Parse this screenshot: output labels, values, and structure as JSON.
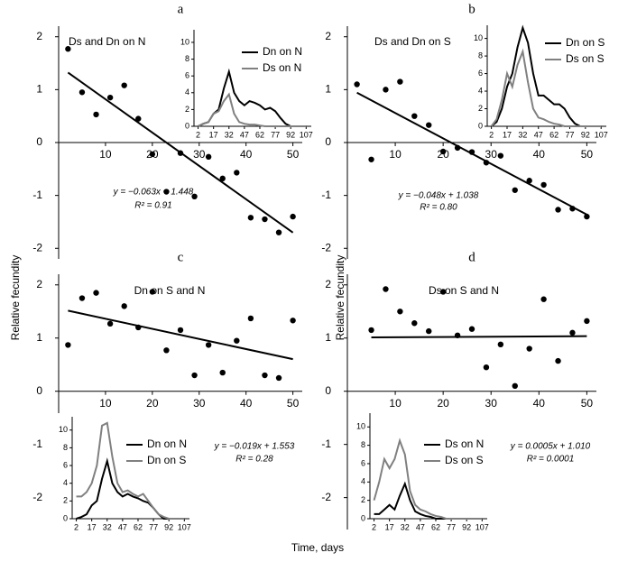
{
  "figure": {
    "ylabels": [
      "Relative fecundity",
      "Relative fecundity"
    ],
    "xlabel": "Time, days"
  },
  "chart_data": [
    {
      "type": "scatter",
      "title": "a",
      "subtitle": "Ds and Dn on N",
      "color": "#000000",
      "x": [
        2,
        5,
        8,
        11,
        14,
        17,
        20,
        23,
        26,
        29,
        32,
        35,
        38,
        41,
        44,
        47,
        50
      ],
      "values": [
        1.77,
        0.95,
        0.53,
        0.85,
        1.08,
        0.45,
        -0.22,
        -0.93,
        -0.2,
        -1.02,
        -0.27,
        -0.68,
        -0.57,
        -1.42,
        -1.45,
        -1.7,
        -1.4
      ],
      "fit": {
        "slope": -0.063,
        "intercept": 1.448
      },
      "equation": "y = −0.063x + 1.448",
      "r2": "R² = 0.91",
      "xlim": [
        0,
        52
      ],
      "ylim": [
        -2.2,
        2.2
      ],
      "xticks": [
        10,
        20,
        30,
        40,
        50
      ],
      "yticks": [
        -2,
        -1,
        0,
        1,
        2
      ]
    },
    {
      "type": "scatter",
      "title": "b",
      "subtitle": "Ds and Dn on S",
      "color": "#000000",
      "x": [
        2,
        5,
        8,
        11,
        14,
        17,
        20,
        23,
        26,
        29,
        32,
        35,
        38,
        41,
        44,
        47,
        50
      ],
      "values": [
        1.1,
        -0.32,
        1.0,
        1.15,
        0.5,
        0.33,
        -0.17,
        -0.1,
        -0.18,
        -0.38,
        -0.25,
        -0.9,
        -0.72,
        -0.8,
        -1.27,
        -1.25,
        -1.4
      ],
      "fit": {
        "slope": -0.048,
        "intercept": 1.038
      },
      "equation": "y = −0.048x + 1.038",
      "r2": "R² = 0.80",
      "xlim": [
        0,
        52
      ],
      "ylim": [
        -2.2,
        2.2
      ],
      "xticks": [
        10,
        20,
        30,
        40,
        50
      ],
      "yticks": [
        -2,
        -1,
        0,
        1,
        2
      ]
    },
    {
      "type": "scatter",
      "title": "c",
      "subtitle": "Dn on S and N",
      "color": "#000000",
      "x": [
        2,
        5,
        8,
        11,
        14,
        17,
        20,
        23,
        26,
        29,
        32,
        35,
        38,
        41,
        44,
        47,
        50
      ],
      "values": [
        0.87,
        1.75,
        1.85,
        1.27,
        1.6,
        1.2,
        1.87,
        0.77,
        1.15,
        0.3,
        0.87,
        0.35,
        0.95,
        1.37,
        0.3,
        0.25,
        1.33
      ],
      "fit": {
        "slope": -0.019,
        "intercept": 1.553
      },
      "equation": "y = −0.019x + 1.553",
      "r2": "R² = 0.28",
      "xlim": [
        0,
        52
      ],
      "ylim": [
        -2.6,
        2.2
      ],
      "xticks": [
        10,
        20,
        30,
        40,
        50
      ],
      "yticks": [
        -2,
        -1,
        0,
        1,
        2
      ]
    },
    {
      "type": "scatter",
      "title": "d",
      "subtitle": "Ds on S and N",
      "color": "#000000",
      "x": [
        5,
        8,
        11,
        14,
        17,
        20,
        23,
        26,
        29,
        32,
        35,
        38,
        41,
        44,
        47,
        50
      ],
      "values": [
        1.15,
        1.92,
        1.5,
        1.28,
        1.13,
        1.87,
        1.05,
        1.17,
        0.45,
        0.88,
        0.1,
        0.8,
        1.73,
        0.57,
        1.1,
        1.32
      ],
      "fit": {
        "slope": 0.0005,
        "intercept": 1.01
      },
      "equation": "y = 0.0005x + 1.010",
      "r2": "R² = 0.0001",
      "xlim": [
        0,
        52
      ],
      "ylim": [
        -2.6,
        2.2
      ],
      "xticks": [
        10,
        20,
        30,
        40,
        50
      ],
      "yticks": [
        -2,
        -1,
        0,
        1,
        2
      ]
    },
    {
      "type": "line",
      "x": [
        2,
        7,
        12,
        17,
        22,
        27,
        32,
        37,
        42,
        47,
        52,
        57,
        62,
        67,
        72,
        77,
        82,
        87,
        92,
        97,
        102,
        107
      ],
      "series": [
        {
          "name": "Dn on N",
          "color": "#000000",
          "values": [
            0,
            0.3,
            0.5,
            1.5,
            2,
            4.5,
            6.5,
            4,
            3,
            2.5,
            3,
            2.8,
            2.5,
            2,
            2.2,
            1.8,
            1,
            0.3,
            0,
            0,
            0,
            0
          ]
        },
        {
          "name": "Ds on N",
          "color": "#808080",
          "values": [
            0,
            0.3,
            0.5,
            1.5,
            1.8,
            3,
            3.8,
            1.5,
            0.5,
            0.3,
            0.2,
            0.2,
            0.1,
            0,
            0,
            0,
            0,
            0,
            0,
            0,
            0,
            0
          ]
        }
      ],
      "xlim": [
        -2,
        112
      ],
      "ylim": [
        0,
        11.5
      ],
      "xticks": [
        2,
        17,
        32,
        47,
        62,
        77,
        92,
        107
      ],
      "yticks": [
        0,
        2,
        4,
        6,
        8,
        10
      ]
    },
    {
      "type": "line",
      "x": [
        2,
        7,
        12,
        17,
        22,
        27,
        32,
        37,
        42,
        47,
        52,
        57,
        62,
        67,
        72,
        77,
        82,
        87,
        92,
        97,
        102,
        107
      ],
      "series": [
        {
          "name": "Dn on S",
          "color": "#000000",
          "values": [
            0,
            0.5,
            2,
            4.5,
            6,
            9,
            11.2,
            9.5,
            6,
            3.5,
            3.5,
            3,
            2.5,
            2.5,
            2,
            1,
            0.3,
            0,
            0,
            0,
            0,
            0
          ]
        },
        {
          "name": "Ds on S",
          "color": "#808080",
          "values": [
            0,
            0.8,
            3,
            6,
            4.5,
            7,
            8.5,
            5,
            2,
            1,
            0.8,
            0.5,
            0.3,
            0.2,
            0,
            0,
            0,
            0,
            0,
            0,
            0,
            0
          ]
        }
      ],
      "xlim": [
        -2,
        112
      ],
      "ylim": [
        0,
        11.5
      ],
      "xticks": [
        2,
        17,
        32,
        47,
        62,
        77,
        92,
        107
      ],
      "yticks": [
        0,
        2,
        4,
        6,
        8,
        10
      ]
    },
    {
      "type": "line",
      "x": [
        2,
        7,
        12,
        17,
        22,
        27,
        32,
        37,
        42,
        47,
        52,
        57,
        62,
        67,
        72,
        77,
        82,
        87,
        92,
        97,
        102,
        107
      ],
      "series": [
        {
          "name": "Dn on N",
          "color": "#000000",
          "values": [
            0,
            0.2,
            0.5,
            1.5,
            2,
            4.5,
            6.5,
            4,
            3,
            2.5,
            2.8,
            2.5,
            2.3,
            2,
            1.8,
            1.2,
            0.5,
            0,
            0,
            0,
            0,
            0
          ]
        },
        {
          "name": "Dn on S",
          "color": "#808080",
          "values": [
            2.5,
            2.5,
            3,
            4,
            6,
            10.5,
            10.8,
            7,
            4,
            3,
            3.2,
            2.8,
            2.5,
            2.8,
            2,
            1.2,
            0.5,
            0.2,
            0,
            0,
            0,
            0
          ]
        }
      ],
      "xlim": [
        -2,
        112
      ],
      "ylim": [
        0,
        11.5
      ],
      "xticks": [
        2,
        17,
        32,
        47,
        62,
        77,
        92,
        107
      ],
      "yticks": [
        0,
        2,
        4,
        6,
        8,
        10
      ]
    },
    {
      "type": "line",
      "x": [
        2,
        7,
        12,
        17,
        22,
        27,
        32,
        37,
        42,
        47,
        52,
        57,
        62,
        67,
        72,
        77,
        82,
        87,
        92,
        97,
        102,
        107
      ],
      "series": [
        {
          "name": "Ds on N",
          "color": "#000000",
          "values": [
            0.5,
            0.5,
            1,
            1.5,
            1,
            2.5,
            3.8,
            2,
            0.8,
            0.5,
            0.3,
            0.2,
            0,
            0,
            0,
            0,
            0,
            0,
            0,
            0,
            0,
            0
          ]
        },
        {
          "name": "Ds on S",
          "color": "#808080",
          "values": [
            2,
            4,
            6.5,
            5.5,
            6.5,
            8.5,
            7,
            3,
            1.5,
            1,
            0.8,
            0.5,
            0.3,
            0.2,
            0,
            0,
            0,
            0,
            0,
            0,
            0,
            0
          ]
        }
      ],
      "xlim": [
        -2,
        112
      ],
      "ylim": [
        0,
        11.5
      ],
      "xticks": [
        2,
        17,
        32,
        47,
        62,
        77,
        92,
        107
      ],
      "yticks": [
        0,
        2,
        4,
        6,
        8,
        10
      ]
    }
  ]
}
